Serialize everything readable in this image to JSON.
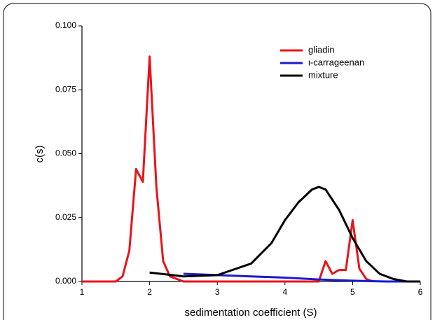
{
  "chart_data": {
    "type": "line",
    "xlabel": "sedimentation coefficient (S)",
    "ylabel": "c(s)",
    "xlim": [
      1,
      6
    ],
    "xticks": [
      1,
      2,
      3,
      4,
      5,
      6
    ],
    "ylim": [
      0,
      0.1
    ],
    "yticks": [
      {
        "value": 0,
        "label": "0.000"
      },
      {
        "value": 0.025,
        "label": "0.025"
      },
      {
        "value": 0.05,
        "label": "0.050"
      },
      {
        "value": 0.075,
        "label": "0.075"
      },
      {
        "value": 0.1,
        "label": "0.100"
      }
    ],
    "legend": "top-right",
    "series": [
      {
        "name": "gliadin",
        "color": "#e8141b",
        "x": [
          1.0,
          1.5,
          1.6,
          1.7,
          1.8,
          1.9,
          2.0,
          2.1,
          2.2,
          2.3,
          2.5,
          4.5,
          4.6,
          4.7,
          4.8,
          4.9,
          5.0,
          5.1,
          5.2,
          5.3
        ],
        "values": [
          0,
          0,
          0.002,
          0.012,
          0.044,
          0.039,
          0.088,
          0.037,
          0.008,
          0.002,
          0,
          0,
          0.008,
          0.003,
          0.0045,
          0.0045,
          0.024,
          0.005,
          0.001,
          0
        ]
      },
      {
        "name": "ι-carrageenan",
        "color": "#1a1ad0",
        "x": [
          2.5,
          3.0,
          3.5,
          4.0,
          4.5,
          5.0,
          5.5,
          6.0
        ],
        "values": [
          0.003,
          0.0025,
          0.002,
          0.0015,
          0.0008,
          0.0003,
          0,
          0
        ]
      },
      {
        "name": "mixture",
        "color": "#000000",
        "x": [
          2.0,
          2.5,
          3.0,
          3.5,
          3.8,
          4.0,
          4.2,
          4.4,
          4.5,
          4.6,
          4.8,
          5.0,
          5.2,
          5.4,
          5.6,
          5.8,
          6.0
        ],
        "values": [
          0.0035,
          0.002,
          0.0025,
          0.007,
          0.015,
          0.024,
          0.031,
          0.036,
          0.037,
          0.036,
          0.028,
          0.017,
          0.008,
          0.003,
          0.001,
          0,
          0
        ]
      }
    ]
  }
}
